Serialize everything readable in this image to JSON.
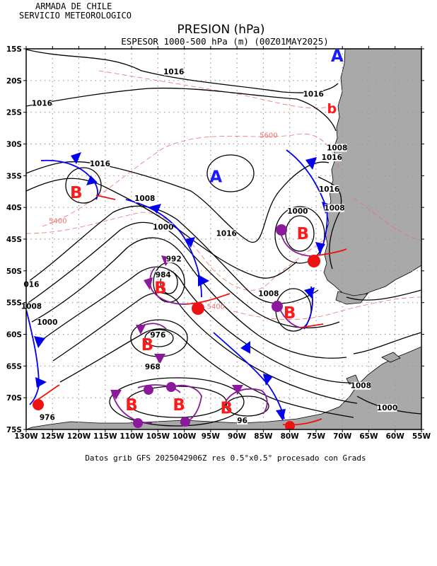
{
  "header": {
    "org_line1": "ARMADA DE CHILE",
    "org_line2": "SERVICIO METEOROLOGICO",
    "title": "PRESION (hPa)",
    "subtitle": "ESPESOR 1000-500 hPa (m) (00Z01MAY2025)"
  },
  "footer": {
    "text": "Datos grib GFS 2025042906Z res 0.5°x0.5° procesado con Grads"
  },
  "axes": {
    "lat_labels": [
      "15S",
      "20S",
      "25S",
      "30S",
      "35S",
      "40S",
      "45S",
      "50S",
      "55S",
      "60S",
      "65S",
      "70S",
      "75S"
    ],
    "lon_labels": [
      "130W",
      "125W",
      "120W",
      "115W",
      "110W",
      "105W",
      "100W",
      "95W",
      "90W",
      "85W",
      "80W",
      "75W",
      "70W",
      "65W",
      "60W",
      "55W"
    ],
    "lat_range": [
      -75,
      -15
    ],
    "lon_range": [
      -130,
      -55
    ],
    "grid": true
  },
  "pressure_labels": [
    {
      "text": "1016",
      "lon": -102,
      "lat": -19
    },
    {
      "text": "1016",
      "lon": -75.5,
      "lat": -22.5
    },
    {
      "text": "1016",
      "lon": -127,
      "lat": -24
    },
    {
      "text": "1016",
      "lon": -116,
      "lat": -33.5
    },
    {
      "text": "1008",
      "lon": -107.5,
      "lat": -39
    },
    {
      "text": "1000",
      "lon": -104,
      "lat": -43.5
    },
    {
      "text": "1016",
      "lon": -92,
      "lat": -44.5
    },
    {
      "text": "992",
      "lon": -102,
      "lat": -48.5
    },
    {
      "text": "984",
      "lon": -104,
      "lat": -51
    },
    {
      "text": "1008",
      "lon": -84,
      "lat": -54
    },
    {
      "text": "016",
      "lon": -129,
      "lat": -52.5
    },
    {
      "text": "1008",
      "lon": -129,
      "lat": -56
    },
    {
      "text": "1000",
      "lon": -126,
      "lat": -58.5
    },
    {
      "text": "976",
      "lon": -105,
      "lat": -60.5
    },
    {
      "text": "968",
      "lon": -106,
      "lat": -65.5
    },
    {
      "text": "1008",
      "lon": -71,
      "lat": -31
    },
    {
      "text": "1016",
      "lon": -72,
      "lat": -32.5
    },
    {
      "text": "1016",
      "lon": -72.5,
      "lat": -37.5
    },
    {
      "text": "1008",
      "lon": -71.5,
      "lat": -40.5
    },
    {
      "text": "1000",
      "lon": -78.5,
      "lat": -41
    },
    {
      "text": "1008",
      "lon": -66.5,
      "lat": -68.5
    },
    {
      "text": "1000",
      "lon": -61.5,
      "lat": -72
    },
    {
      "text": "976",
      "lon": -126,
      "lat": -73.5
    },
    {
      "text": "96",
      "lon": -89,
      "lat": -74
    }
  ],
  "thickness_labels": [
    {
      "text": "5600",
      "lon": -84,
      "lat": -29
    },
    {
      "text": "5400",
      "lon": -124,
      "lat": -42.5
    },
    {
      "text": "5400",
      "lon": -94,
      "lat": -56
    }
  ],
  "high_centers": [
    {
      "text": "A",
      "lon": -71,
      "lat": -16
    },
    {
      "text": "A",
      "lon": -94,
      "lat": -35
    }
  ],
  "low_centers": [
    {
      "text": "B",
      "lon": -120.5,
      "lat": -37.5
    },
    {
      "text": "B",
      "lon": -77.5,
      "lat": -44
    },
    {
      "text": "B",
      "lon": -104.5,
      "lat": -52.5
    },
    {
      "text": "B",
      "lon": -80,
      "lat": -56.5
    },
    {
      "text": "B",
      "lon": -107,
      "lat": -61.5
    },
    {
      "text": "B",
      "lon": -110,
      "lat": -71
    },
    {
      "text": "B",
      "lon": -101,
      "lat": -71
    },
    {
      "text": "B",
      "lon": -92,
      "lat": -71.5
    }
  ],
  "small_low": {
    "text": "b",
    "lon": -72,
    "lat": -24.5
  },
  "colors": {
    "isobar": "#000000",
    "thickness": "#f07070",
    "high": "#1a1aff",
    "low": "#ff1a1a",
    "cold_front": "#0000ee",
    "warm_front": "#ee1111",
    "occluded_front": "#8a1a9a",
    "land": "#a9a9a9",
    "grid": "#9a9a9a"
  }
}
